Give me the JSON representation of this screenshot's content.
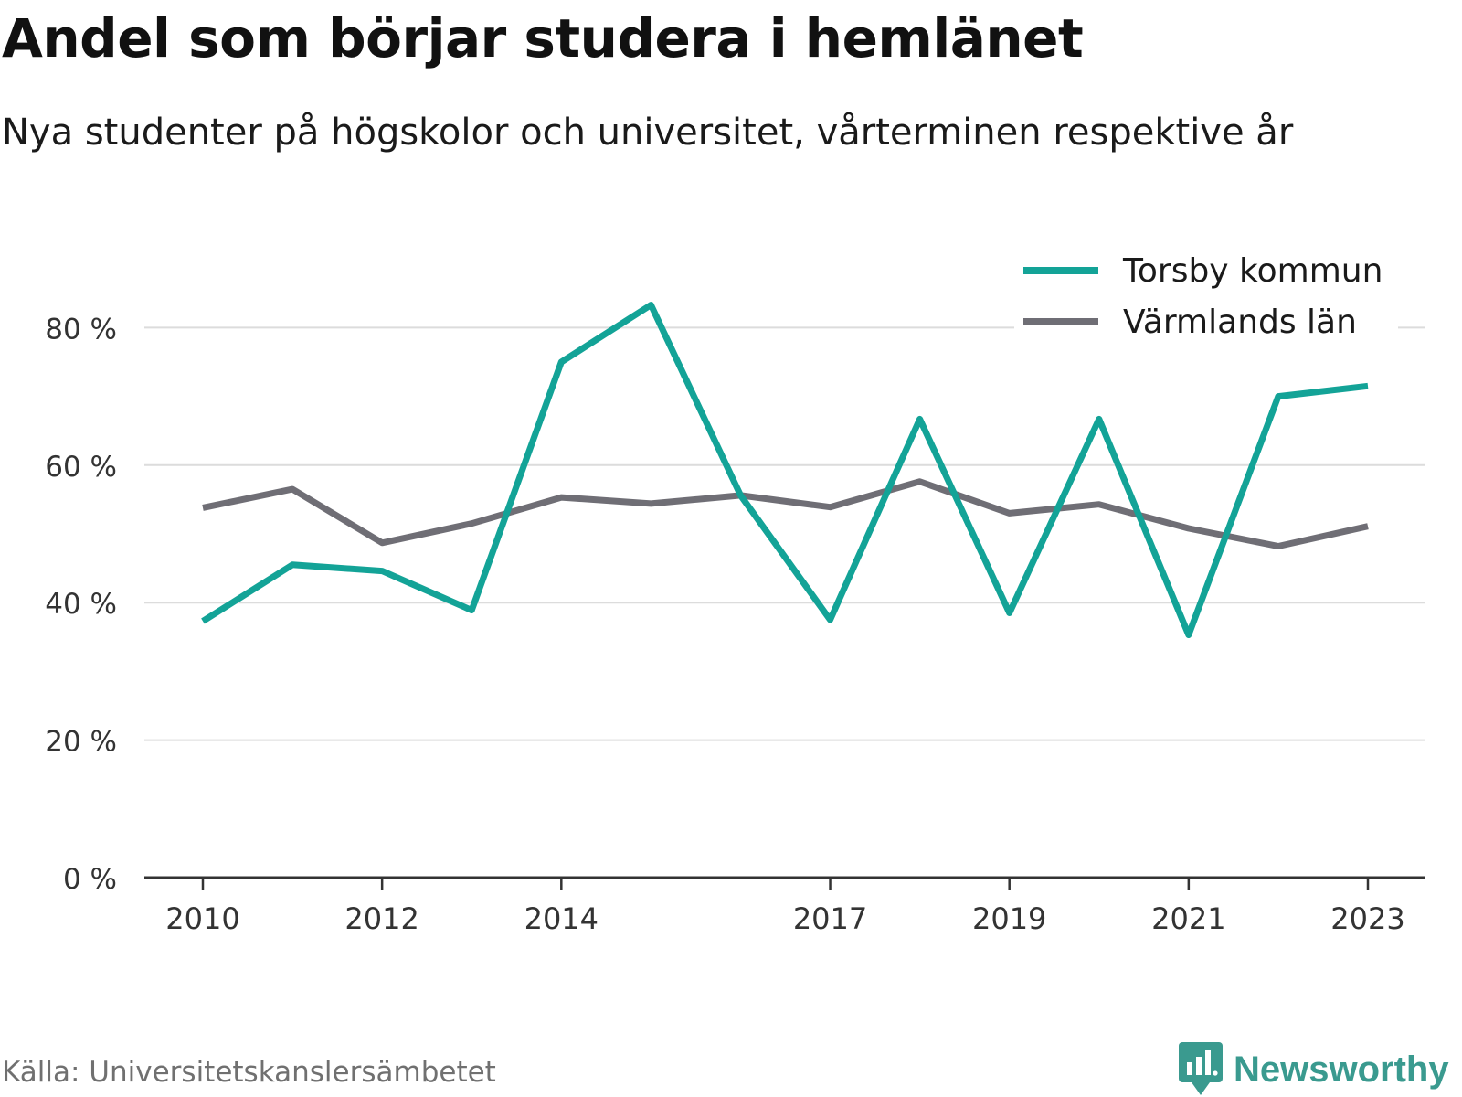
{
  "title": "Andel som börjar studera i hemlänet",
  "subtitle": "Nya studenter på högskolor och universitet, vårterminen respektive år",
  "source": "Källa: Universitetskanslersämbetet",
  "brand": "Newsworthy",
  "chart_data": {
    "type": "line",
    "x": [
      2010,
      2011,
      2012,
      2013,
      2014,
      2015,
      2016,
      2017,
      2018,
      2019,
      2020,
      2021,
      2022,
      2023
    ],
    "xticks": [
      "2010",
      "2012",
      "2014",
      "2017",
      "2019",
      "2021",
      "2023"
    ],
    "yticks": [
      "0 %",
      "20 %",
      "40 %",
      "60 %",
      "80 %"
    ],
    "ylim": [
      0,
      100
    ],
    "grid": true,
    "legend": "top-right",
    "series": [
      {
        "name": "Torsby kommun",
        "color": "#13a397",
        "values": [
          37.3,
          45.5,
          44.6,
          38.9,
          75.0,
          83.3,
          55.6,
          37.5,
          66.7,
          38.5,
          66.7,
          35.3,
          70.0,
          71.5
        ]
      },
      {
        "name": "Värmlands län",
        "color": "#6f6e75",
        "values": [
          53.8,
          56.5,
          48.7,
          51.5,
          55.3,
          54.4,
          55.6,
          53.9,
          57.6,
          53.0,
          54.3,
          50.8,
          48.2,
          51.1
        ]
      }
    ]
  }
}
